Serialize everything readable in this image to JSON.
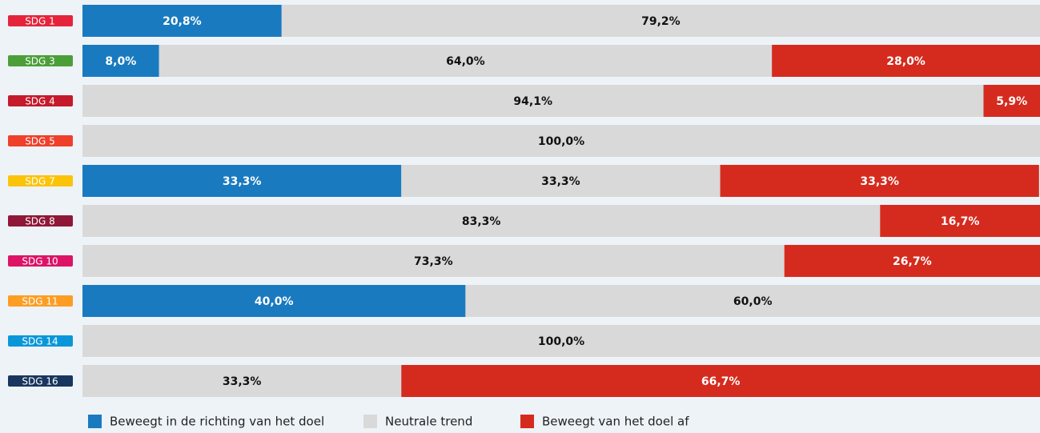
{
  "chart_data": {
    "type": "stacked-bar-horizontal",
    "categories": [
      "SDG 1",
      "SDG 3",
      "SDG 4",
      "SDG 5",
      "SDG 7",
      "SDG 8",
      "SDG 10",
      "SDG 11",
      "SDG 14",
      "SDG 16"
    ],
    "category_colors": [
      "#e5243b",
      "#4c9f38",
      "#c5192d",
      "#ef402b",
      "#fcc30b",
      "#8f1838",
      "#dd1367",
      "#fd9d24",
      "#0a97d9",
      "#19365e"
    ],
    "xlim": [
      0,
      100
    ],
    "legend": "bottom",
    "series": [
      {
        "name": "Beweegt in de richting van het doel",
        "color": "#1a7abf",
        "values": [
          20.8,
          8.0,
          0,
          0,
          33.3,
          0,
          0,
          40.0,
          0,
          0
        ],
        "value_labels": [
          "20,8%",
          "8,0%",
          null,
          null,
          "33,3%",
          null,
          null,
          "40,0%",
          null,
          null
        ]
      },
      {
        "name": "Neutrale trend",
        "color": "#d9d9d9",
        "values": [
          79.2,
          64.0,
          94.1,
          100.0,
          33.3,
          83.3,
          73.3,
          60.0,
          100.0,
          33.3
        ],
        "value_labels": [
          "79,2%",
          "64,0%",
          "94,1%",
          "100,0%",
          "33,3%",
          "83,3%",
          "73,3%",
          "60,0%",
          "100,0%",
          "33,3%"
        ]
      },
      {
        "name": "Beweegt van het doel af",
        "color": "#d52b1e",
        "values": [
          0,
          28.0,
          5.9,
          0,
          33.3,
          16.7,
          26.7,
          0,
          0,
          66.7
        ],
        "value_labels": [
          null,
          "28,0%",
          "5,9%",
          null,
          "33,3%",
          "16,7%",
          "26,7%",
          null,
          null,
          "66,7%"
        ]
      }
    ]
  }
}
